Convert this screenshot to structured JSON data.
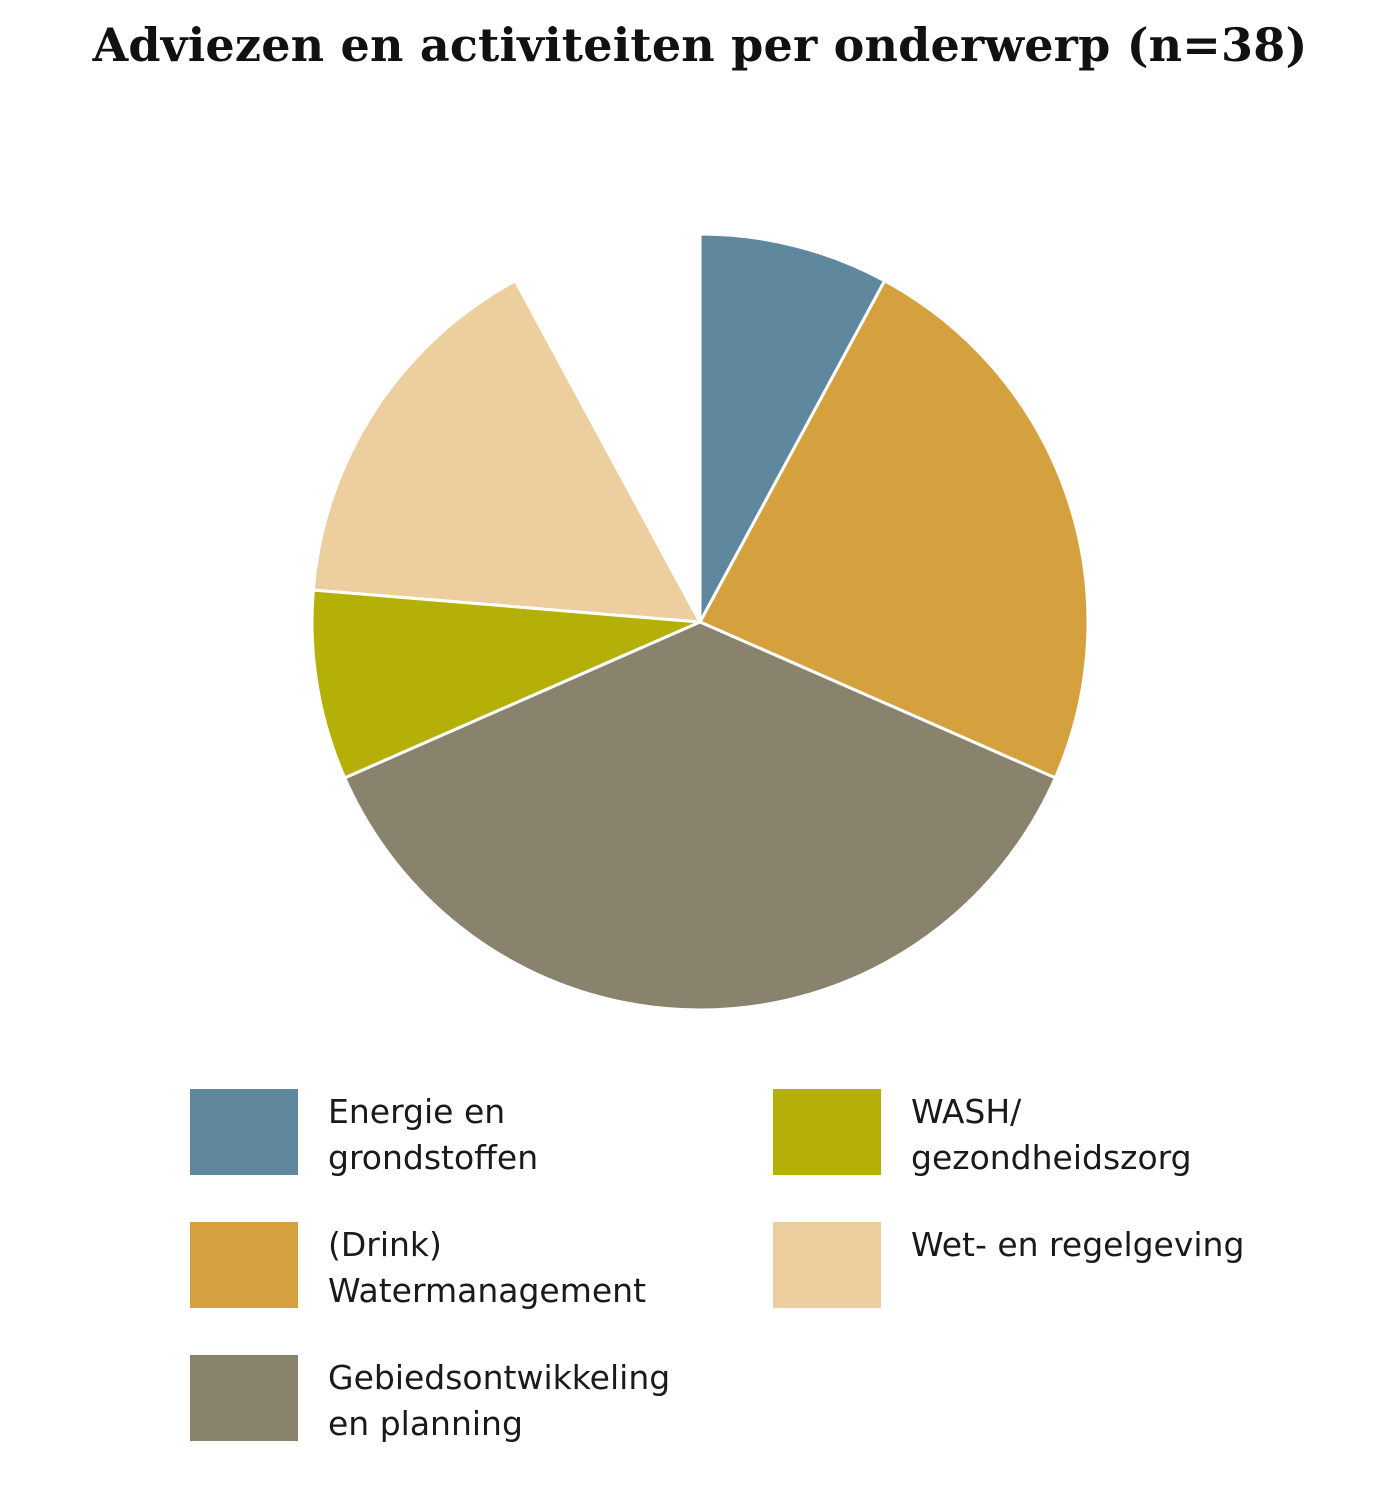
{
  "chart_data": {
    "type": "pie",
    "title": "Adviezen en activiteiten per onderwerp (n=38)",
    "start_angle_deg": 0,
    "direction": "clockwise",
    "series": [
      {
        "name": "Energie en\ngrondstoffen",
        "value": 3,
        "color": "#5f889f"
      },
      {
        "name": "(Drink)\nWatermanagement",
        "value": 9,
        "color": "#d5a03e"
      },
      {
        "name": "Gebiedsontwikkeling\nen planning",
        "value": 14,
        "color": "#89836e"
      },
      {
        "name": "WASH/\ngezondheidszorg",
        "value": 3,
        "color": "#b4b008"
      },
      {
        "name": "Wet- en regelgeving",
        "value": 6,
        "color": "#edce9e"
      },
      {
        "name": "",
        "value": 3,
        "color": "#ffffff"
      }
    ],
    "legend": {
      "placement": "bottom",
      "columns": 2
    }
  }
}
